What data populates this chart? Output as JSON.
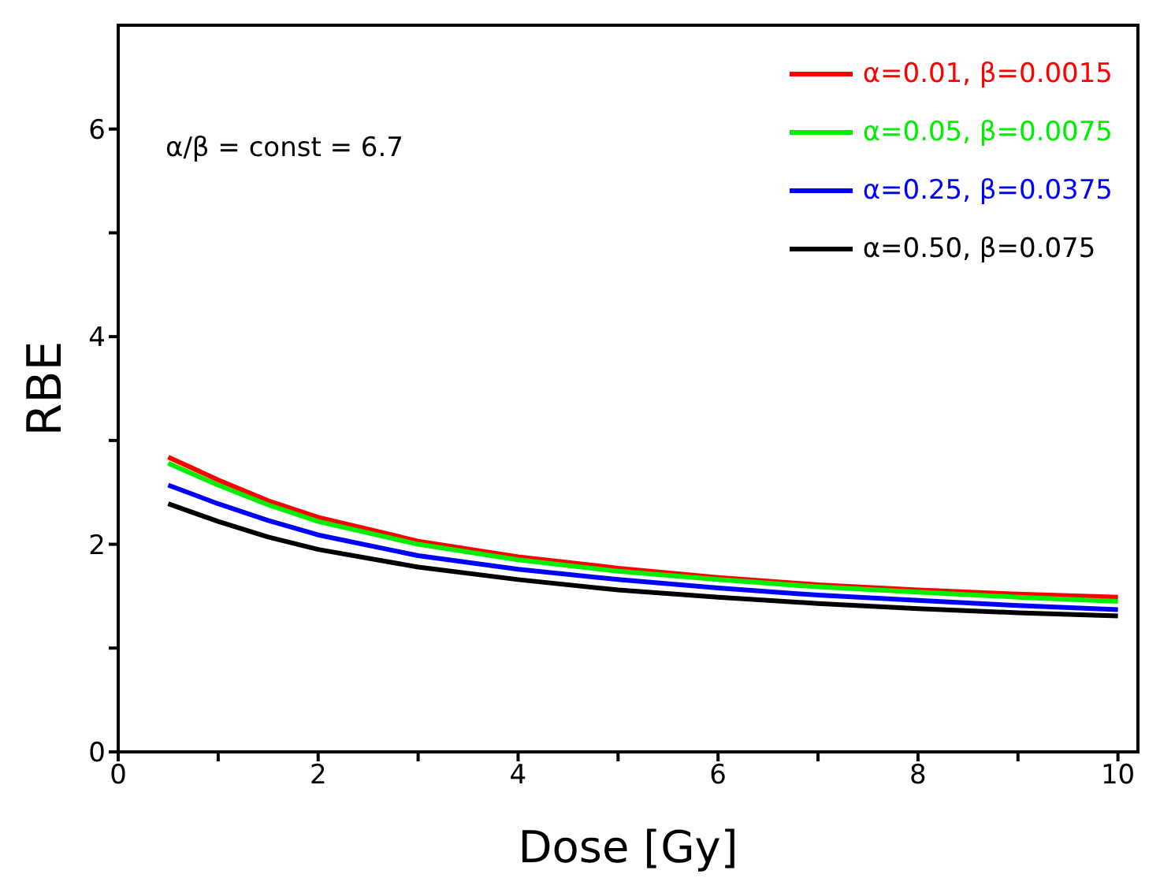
{
  "chart_data": {
    "type": "line",
    "xlabel": "Dose  [Gy]",
    "ylabel": "RBE",
    "annotations": [
      "α/β = const = 6.7"
    ],
    "x": [
      0.5,
      1,
      1.5,
      2,
      3,
      4,
      5,
      6,
      7,
      8,
      9,
      10
    ],
    "series": [
      {
        "name": "α=0.01, β=0.0015",
        "color": "#ff0000",
        "values": [
          2.84,
          2.62,
          2.42,
          2.26,
          2.03,
          1.88,
          1.77,
          1.68,
          1.61,
          1.56,
          1.52,
          1.49
        ]
      },
      {
        "name": "α=0.05, β=0.0075",
        "color": "#00ee00",
        "values": [
          2.78,
          2.57,
          2.38,
          2.22,
          2.0,
          1.85,
          1.74,
          1.66,
          1.59,
          1.54,
          1.49,
          1.45
        ]
      },
      {
        "name": "α=0.25, β=0.0375",
        "color": "#0000ff",
        "values": [
          2.57,
          2.39,
          2.23,
          2.09,
          1.89,
          1.76,
          1.66,
          1.58,
          1.51,
          1.46,
          1.41,
          1.37
        ]
      },
      {
        "name": "α=0.50, β=0.075",
        "color": "#000000",
        "values": [
          2.39,
          2.22,
          2.07,
          1.95,
          1.78,
          1.66,
          1.56,
          1.49,
          1.43,
          1.38,
          1.34,
          1.31
        ]
      }
    ],
    "xlim": [
      0,
      10.2
    ],
    "xticks": [
      0,
      {
        "value": 1,
        "label": null
      },
      2,
      {
        "value": 3,
        "label": null
      },
      4,
      {
        "value": 5,
        "label": null
      },
      6,
      {
        "value": 7,
        "label": null
      },
      8,
      {
        "value": 9,
        "label": null
      },
      10
    ],
    "ylim": [
      0,
      7
    ],
    "yticks": [
      0,
      {
        "value": 1,
        "label": null
      },
      2,
      {
        "value": 3,
        "label": null
      },
      4,
      {
        "value": 5,
        "label": null
      },
      6
    ],
    "grid": false,
    "legend": "top right",
    "marker": "none",
    "line_style": "solid"
  }
}
